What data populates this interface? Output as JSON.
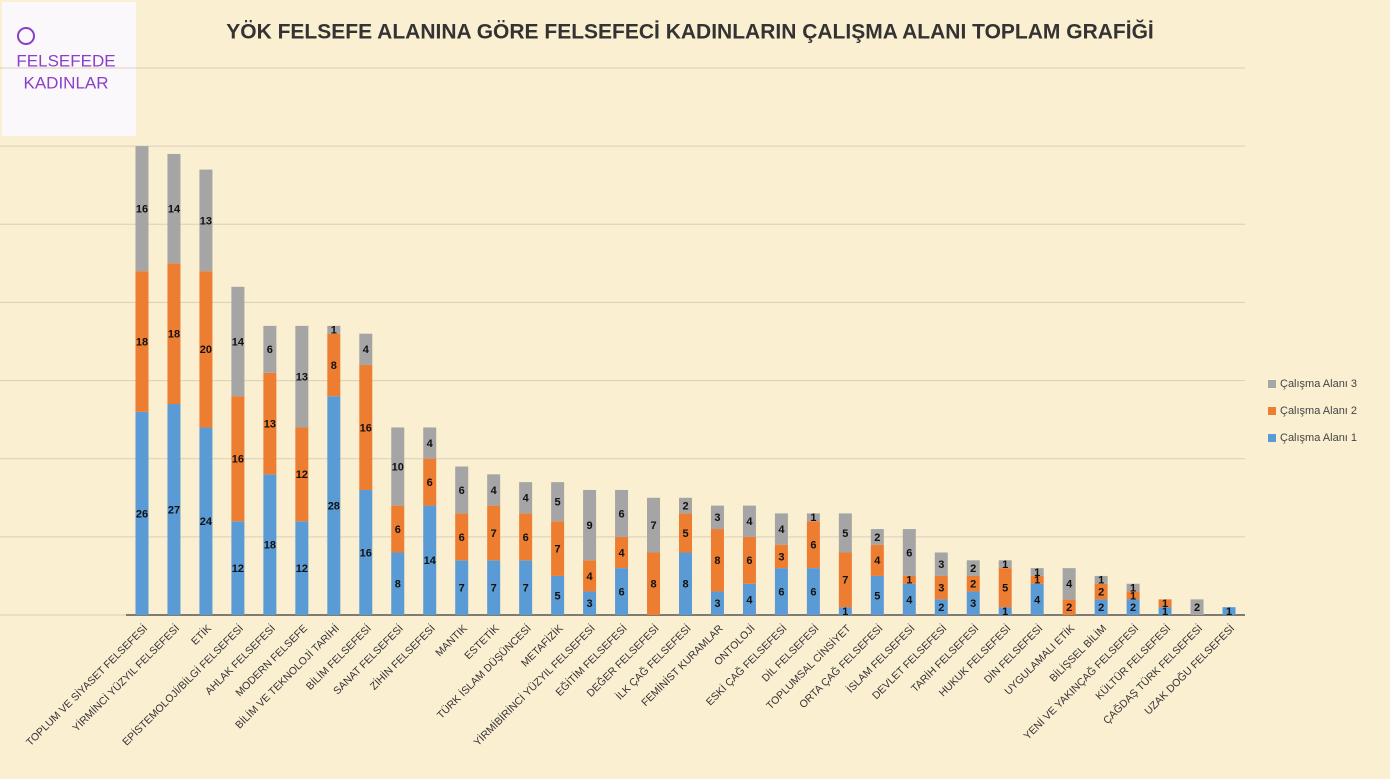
{
  "logo": [
    "FELSEFEDE",
    "KADINLAR"
  ],
  "chart_data": {
    "type": "stacked_bar",
    "title": "YÖK FELSEFE ALANINA GÖRE FELSEFECİ KADINLARIN ÇALIŞMA ALANI TOPLAM GRAFİĞİ",
    "categories": [
      "TOPLUM VE SİYASET FELSEFESİ",
      "YİRMİNCİ YÜZYIL FELSEFESİ",
      "ETİK",
      "EPİSTEMOLOJİ/BİLGİ FELSEFESİ",
      "AHLAK FELSEFESİ",
      "MODERN FELSEFE",
      "BİLİM VE TEKNOLOJİ TARİHİ",
      "BİLİM FELSEFESİ",
      "SANAT FELSEFESİ",
      "ZİHİN FELSEFESİ",
      "MANTIK",
      "ESTETİK",
      "TÜRK İSLAM DÜŞÜNCESİ",
      "METAFİZİK",
      "YİRMİBİRİNCİ YÜZYIL FELSEFESİ",
      "EĞİTİM FELSEFESİ",
      "DEĞER FELSEFESİ",
      "İLK ÇAĞ FELSEFESİ",
      "FEMİNİST KURAMLAR",
      "ONTOLOJİ",
      "ESKİ ÇAĞ FELSEFESİ",
      "DİL FELSEFESİ",
      "TOPLUMSAL CİNSİYET",
      "ORTA ÇAĞ FELSEFESİ",
      "İSLAM FELSEFESİ",
      "DEVLET FELSEFESİ",
      "TARİH FELSEFESİ",
      "HUKUK FELSEFESİ",
      "DİN FELSEFESİ",
      "UYGULAMALI ETİK",
      "BİLİŞSEL BİLİM",
      "YENİ VE YAKINÇAĞ FELSEFESİ",
      "KÜLTÜR FELSEFESİ",
      "ÇAĞDAŞ TÜRK FELSEFESİ",
      "UZAK DOĞU FELSEFESİ"
    ],
    "series": [
      {
        "name": "Çalışma Alanı 1",
        "color": "#5b9bd5",
        "values": [
          26,
          27,
          24,
          12,
          18,
          12,
          28,
          16,
          8,
          14,
          7,
          7,
          7,
          5,
          3,
          6,
          null,
          8,
          3,
          4,
          6,
          6,
          1,
          5,
          4,
          2,
          3,
          1,
          4,
          null,
          2,
          2,
          1,
          null,
          1
        ]
      },
      {
        "name": "Çalışma Alanı 2",
        "color": "#ed7d31",
        "values": [
          18,
          18,
          20,
          16,
          13,
          12,
          8,
          16,
          6,
          6,
          6,
          7,
          6,
          7,
          4,
          4,
          8,
          5,
          8,
          6,
          3,
          6,
          7,
          4,
          1,
          3,
          2,
          5,
          1,
          2,
          2,
          1,
          1,
          null,
          null
        ]
      },
      {
        "name": "Çalışma Alanı 3",
        "color": "#a5a5a5",
        "values": [
          16,
          14,
          13,
          14,
          6,
          13,
          1,
          4,
          10,
          4,
          6,
          4,
          4,
          5,
          9,
          6,
          7,
          2,
          3,
          4,
          4,
          1,
          5,
          2,
          6,
          3,
          2,
          1,
          1,
          4,
          1,
          1,
          null,
          2,
          null
        ]
      }
    ],
    "ylim": [
      0,
      70
    ],
    "yticks": [
      0,
      10,
      20,
      30,
      40,
      50,
      60,
      70
    ],
    "grid": true,
    "legend": "right"
  }
}
